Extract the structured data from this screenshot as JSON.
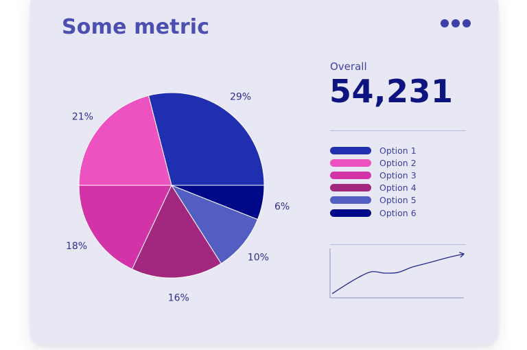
{
  "card": {
    "title": "Some metric",
    "menu_icon": "more-horizontal-icon"
  },
  "summary": {
    "label": "Overall",
    "value": "54,231"
  },
  "colors": {
    "accent": "#4a4fb0",
    "value": "#0d1480",
    "background": "#e8e7f4"
  },
  "chart_data": [
    {
      "type": "pie",
      "categories": [
        "Option 1",
        "Option 2",
        "Option 3",
        "Option 4",
        "Option 5",
        "Option 6"
      ],
      "values": [
        29,
        21,
        18,
        16,
        10,
        6
      ],
      "labels": [
        "29%",
        "21%",
        "18%",
        "16%",
        "10%",
        "6%"
      ],
      "colors": [
        "#1f2fb0",
        "#ec53c1",
        "#d233a6",
        "#a2287f",
        "#535ec2",
        "#00088a"
      ],
      "legend_placement": "right"
    },
    {
      "type": "line",
      "x": [
        0,
        1,
        2,
        3,
        4,
        5,
        6,
        7,
        8,
        9,
        10
      ],
      "values": [
        2,
        14,
        25,
        33,
        31,
        32,
        39,
        44,
        49,
        54,
        58
      ],
      "color": "#1f2a8a",
      "axes": "left-and-bottom, unlabeled",
      "end_marker": "arrow"
    }
  ]
}
